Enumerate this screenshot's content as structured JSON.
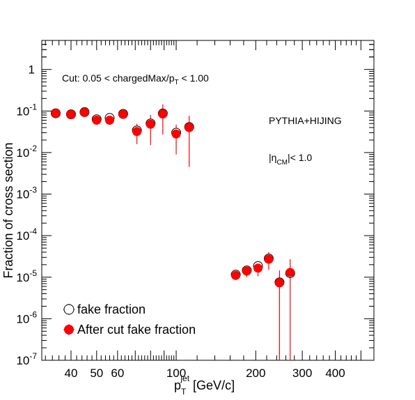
{
  "chart_data": {
    "type": "scatter",
    "xlabel": {
      "main": "p",
      "sub": "T",
      "sup": "jet",
      "unit": " [GeV/c]"
    },
    "ylabel": "Fraction of cross section",
    "xscale": "log",
    "yscale": "log",
    "xlim": [
      31,
      560
    ],
    "ylim": [
      1e-07,
      5
    ],
    "x_ticks": [
      {
        "value": 40,
        "label": "40"
      },
      {
        "value": 50,
        "label": "50"
      },
      {
        "value": 60,
        "label": "60"
      },
      {
        "value": 100,
        "label": "100"
      },
      {
        "value": 200,
        "label": "200"
      },
      {
        "value": 300,
        "label": "300"
      },
      {
        "value": 400,
        "label": "400"
      }
    ],
    "y_ticks": [
      {
        "value": 1e-07,
        "mant": "10",
        "exp": "-7"
      },
      {
        "value": 1e-06,
        "mant": "10",
        "exp": "-6"
      },
      {
        "value": 1e-05,
        "mant": "10",
        "exp": "-5"
      },
      {
        "value": 0.0001,
        "mant": "10",
        "exp": "-4"
      },
      {
        "value": 0.001,
        "mant": "10",
        "exp": "-3"
      },
      {
        "value": 0.01,
        "mant": "10",
        "exp": "-2"
      },
      {
        "value": 0.1,
        "mant": "10",
        "exp": "-1"
      },
      {
        "value": 1,
        "mant": "1",
        "exp": ""
      }
    ],
    "annotations": {
      "cut": {
        "pre": "Cut: 0.05 < chargedMax/p",
        "sub": "T",
        "post": " < 1.00"
      },
      "generator": "PYTHIA+HIJING",
      "eta": {
        "pre": "|η",
        "sub": "CM",
        "post": "|< 1.0"
      }
    },
    "legend_position": "bottom-left",
    "series": [
      {
        "name": "fake fraction",
        "marker": "open-circle",
        "color": "#000000",
        "points": [
          {
            "x": 35,
            "y": 0.088
          },
          {
            "x": 40,
            "y": 0.083
          },
          {
            "x": 45,
            "y": 0.094
          },
          {
            "x": 50,
            "y": 0.063
          },
          {
            "x": 56,
            "y": 0.068
          },
          {
            "x": 63,
            "y": 0.085
          },
          {
            "x": 71,
            "y": 0.034
          },
          {
            "x": 80,
            "y": 0.05
          },
          {
            "x": 89,
            "y": 0.087
          },
          {
            "x": 100,
            "y": 0.03
          },
          {
            "x": 112,
            "y": 0.041
          },
          {
            "x": 168,
            "y": 1.15e-05
          },
          {
            "x": 185,
            "y": 1.45e-05
          },
          {
            "x": 204,
            "y": 1.85e-05
          },
          {
            "x": 224,
            "y": 2.8e-05
          },
          {
            "x": 246,
            "y": 7.5e-06
          },
          {
            "x": 270,
            "y": 1.25e-05
          }
        ]
      },
      {
        "name": "After cut fake fraction",
        "marker": "filled-circle",
        "color": "#ff0000",
        "points": [
          {
            "x": 35,
            "y": 0.088,
            "lo": 0.079,
            "hi": 0.097
          },
          {
            "x": 40,
            "y": 0.082,
            "lo": 0.074,
            "hi": 0.09
          },
          {
            "x": 45,
            "y": 0.093,
            "lo": 0.081,
            "hi": 0.105
          },
          {
            "x": 50,
            "y": 0.06,
            "lo": 0.052,
            "hi": 0.069
          },
          {
            "x": 56,
            "y": 0.06,
            "lo": 0.051,
            "hi": 0.071
          },
          {
            "x": 63,
            "y": 0.083,
            "lo": 0.066,
            "hi": 0.101
          },
          {
            "x": 71,
            "y": 0.032,
            "lo": 0.016,
            "hi": 0.049
          },
          {
            "x": 80,
            "y": 0.048,
            "lo": 0.015,
            "hi": 0.08
          },
          {
            "x": 89,
            "y": 0.085,
            "lo": 0.027,
            "hi": 0.145
          },
          {
            "x": 100,
            "y": 0.028,
            "lo": 0.009,
            "hi": 0.047
          },
          {
            "x": 112,
            "y": 0.04,
            "lo": 0.0045,
            "hi": 0.077
          },
          {
            "x": 168,
            "y": 1.1e-05,
            "lo": 9.5e-06,
            "hi": 1.25e-05
          },
          {
            "x": 185,
            "y": 1.4e-05,
            "lo": 1e-05,
            "hi": 1.8e-05
          },
          {
            "x": 204,
            "y": 1.65e-05,
            "lo": 1.05e-05,
            "hi": 2.3e-05
          },
          {
            "x": 224,
            "y": 2.7e-05,
            "lo": 1.5e-05,
            "hi": 4e-05
          },
          {
            "x": 246,
            "y": 7.3e-06,
            "lo": 1e-07,
            "hi": 1.45e-05
          },
          {
            "x": 270,
            "y": 1.3e-05,
            "lo": 1e-07,
            "hi": 2.7e-05
          }
        ]
      }
    ]
  }
}
